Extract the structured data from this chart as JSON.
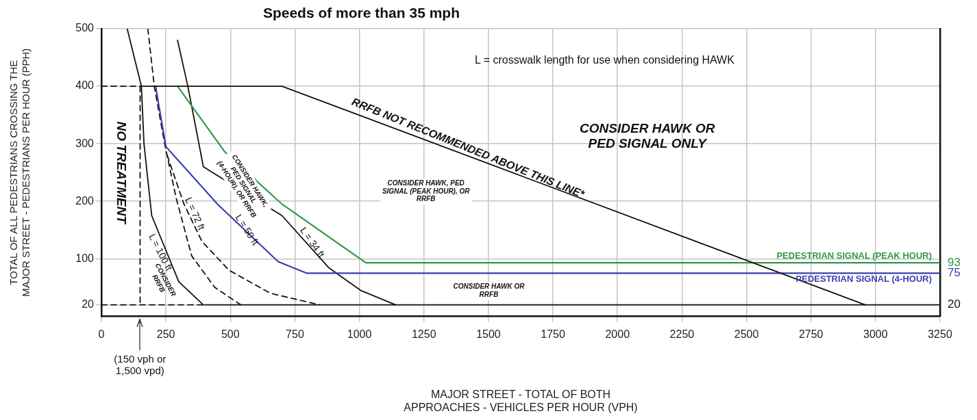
{
  "chart_data": {
    "type": "line",
    "title": "Speeds of more than 35 mph",
    "xlabel": "MAJOR STREET - TOTAL OF BOTH APPROACHES - VEHICLES PER HOUR (VPH)",
    "ylabel": "TOTAL OF ALL PEDESTRIANS CROSSING THE MAJOR STREET - PEDESTRIANS PER HOUR (PPH)",
    "xlim": [
      0,
      3250
    ],
    "xticks": [
      0,
      250,
      500,
      750,
      1000,
      1250,
      1500,
      1750,
      2000,
      2250,
      2500,
      2750,
      3000,
      3250
    ],
    "ylim": [
      0,
      500
    ],
    "yticks": [
      20,
      100,
      200,
      300,
      400,
      500
    ],
    "y2lim": [
      0,
      500
    ],
    "y2ticks": [
      20,
      75,
      93
    ],
    "grid": true,
    "legend": false,
    "marker": "none",
    "series": [
      {
        "x": [
          150,
          700,
          2960
        ],
        "values": [
          400,
          400,
          20
        ],
        "color": "#111111"
      },
      {
        "x": [
          400,
          3250
        ],
        "values": [
          20,
          20
        ],
        "color": "#111111"
      },
      {
        "x": [
          0,
          150
        ],
        "values": [
          400,
          400
        ],
        "color": "#111111",
        "line_style": "dashed"
      },
      {
        "x": [
          0,
          400
        ],
        "values": [
          20,
          20
        ],
        "color": "#111111",
        "line_style": "dashed"
      },
      {
        "x": [
          150,
          150
        ],
        "values": [
          400,
          20
        ],
        "color": "#111111",
        "line_style": "dashed"
      },
      {
        "name": "PEDESTRIAN SIGNAL (PEAK HOUR)",
        "x": [
          295,
          480,
          700,
          1025,
          3250
        ],
        "values": [
          400,
          285,
          195,
          93,
          93
        ],
        "color": "#2e9a47"
      },
      {
        "name": "PEDESTRIAN SIGNAL (4-HOUR)",
        "x": [
          210,
          250,
          450,
          685,
          795,
          3250
        ],
        "values": [
          400,
          295,
          195,
          95,
          75,
          75
        ],
        "color": "#3b3fae"
      },
      {
        "x": [
          100,
          155,
          165,
          195,
          300,
          395
        ],
        "values": [
          500,
          400,
          300,
          175,
          60,
          20
        ],
        "color": "#111111"
      },
      {
        "x": [
          180,
          205,
          245,
          290,
          350,
          440,
          540
        ],
        "values": [
          500,
          400,
          300,
          205,
          105,
          50,
          20
        ],
        "color": "#111111",
        "line_style": "dashed"
      },
      {
        "x": [
          255,
          320,
          390,
          495,
          655,
          845
        ],
        "values": [
          280,
          195,
          130,
          80,
          40,
          20
        ],
        "color": "#111111",
        "line_style": "dashed"
      },
      {
        "x": [
          295,
          335,
          395,
          700,
          880,
          1005,
          1140
        ],
        "values": [
          480,
          400,
          260,
          175,
          85,
          45,
          20
        ],
        "color": "#111111"
      }
    ],
    "annotations": [
      "L = crosswalk length for use when considering HAWK",
      "NO TREATMENT",
      "CONSIDER RRFB",
      "L = 100 ft",
      "L = 72 ft",
      "L = 50 ft",
      "L = 34 ft",
      "CONSIDER HAWK, PED SIGNAL (4-HOUR), OR RRFB",
      "CONSIDER HAWK, PED SIGNAL (PEAK HOUR), OR RRFB",
      "CONSIDER HAWK OR RRFB",
      "CONSIDER HAWK OR PED SIGNAL ONLY",
      "RRFB NOT RECOMMENDED ABOVE THIS LINE*",
      "(150 vph or 1,500 vpd)"
    ]
  }
}
